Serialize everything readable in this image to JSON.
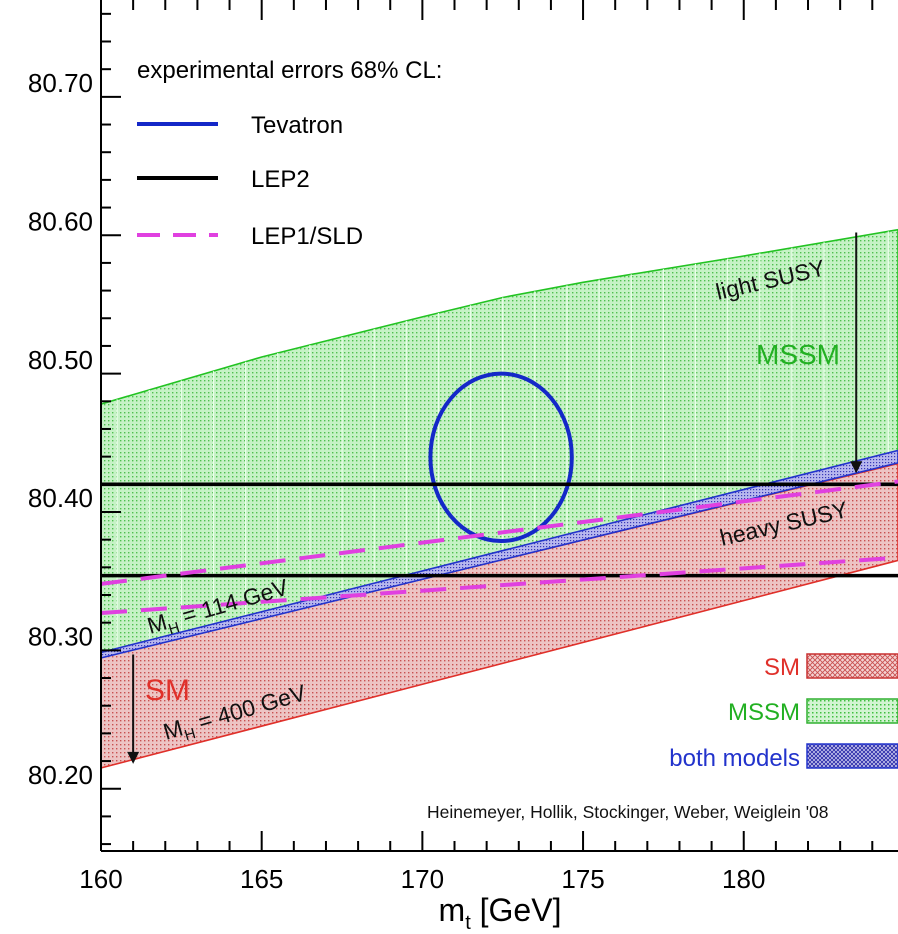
{
  "chart_data": {
    "type": "area",
    "xlabel": "m",
    "xlabel_sub": "t",
    "xlabel_unit": " [GeV]",
    "xlim": [
      160,
      184.8
    ],
    "ylim": [
      80.145,
      80.76
    ],
    "x_ticks": [
      160,
      165,
      170,
      175,
      180
    ],
    "y_ticks": [
      80.2,
      80.3,
      80.4,
      80.5,
      80.6,
      80.7
    ],
    "y_tick_labels": [
      "80.20",
      "80.30",
      "80.40",
      "80.50",
      "80.60",
      "80.70"
    ],
    "grid": false,
    "bands": [
      {
        "name": "MSSM",
        "color": "#22c322",
        "fill": "#b8efb8",
        "upper": {
          "x": [
            160,
            165,
            170,
            172.5,
            175,
            180,
            184.8
          ],
          "y": [
            80.468,
            80.502,
            80.531,
            80.545,
            80.556,
            80.575,
            80.594
          ]
        },
        "lower": {
          "x": [
            160,
            184.8
          ],
          "y": [
            80.288,
            80.434
          ]
        }
      },
      {
        "name": "SM",
        "color": "#e0302a",
        "fill": "#e8b4b4",
        "upper": {
          "x": [
            160,
            184.8
          ],
          "y": [
            80.285,
            80.425
          ]
        },
        "lower": {
          "x": [
            160,
            184.8
          ],
          "y": [
            80.205,
            80.355
          ]
        }
      },
      {
        "name": "both models",
        "color": "#2233cc",
        "fill": "#a8a8e8",
        "upper": {
          "x": [
            160,
            184.8
          ],
          "y": [
            80.2885,
            80.4345
          ]
        },
        "lower": {
          "x": [
            160,
            184.8
          ],
          "y": [
            80.2845,
            80.4255
          ]
        }
      }
    ],
    "measurements": [
      {
        "name": "Tevatron",
        "type": "ellipse",
        "color": "#1428c8",
        "cx": 172.45,
        "cy": 80.4295,
        "rx": 2.2,
        "ry": 0.0605
      },
      {
        "name": "LEP2",
        "type": "hlines",
        "color": "#000000",
        "y": [
          80.41,
          80.344
        ]
      },
      {
        "name": "LEP1/SLD",
        "type": "dashed-band",
        "color": "#e040e0",
        "upper": {
          "x": [
            160,
            184.8
          ],
          "y": [
            80.338,
            80.412
          ]
        },
        "lower": {
          "x": [
            160,
            184.8
          ],
          "y": [
            80.317,
            80.357
          ]
        }
      }
    ],
    "arrows": [
      {
        "name": "light-susy-arrow",
        "x": 183.5,
        "y_from": 80.592,
        "y_to": 80.418
      },
      {
        "name": "sm-arrow",
        "x": 161.0,
        "y_from": 80.287,
        "y_to": 80.208
      }
    ],
    "legend": {
      "placement": "top-left",
      "title": "experimental errors 68% CL:",
      "entries": [
        "Tevatron",
        "LEP2",
        "LEP1/SLD"
      ]
    },
    "band_legend": {
      "placement": "bottom-right",
      "entries": [
        {
          "label": "SM",
          "color": "#e0302a"
        },
        {
          "label": "MSSM",
          "color": "#22b022"
        },
        {
          "label": "both models",
          "color": "#2233cc"
        }
      ]
    },
    "annotations": {
      "light_susy": "light SUSY",
      "heavy_susy": "heavy SUSY",
      "mssm": "MSSM",
      "sm": "SM",
      "mh_114": {
        "main": "M",
        "sub": "H",
        "rest": " = 114 GeV"
      },
      "mh_400": {
        "main": "M",
        "sub": "H",
        "rest": " = 400 GeV"
      },
      "credit": "Heinemeyer, Hollik, Stockinger, Weber, Weiglein '08"
    }
  }
}
